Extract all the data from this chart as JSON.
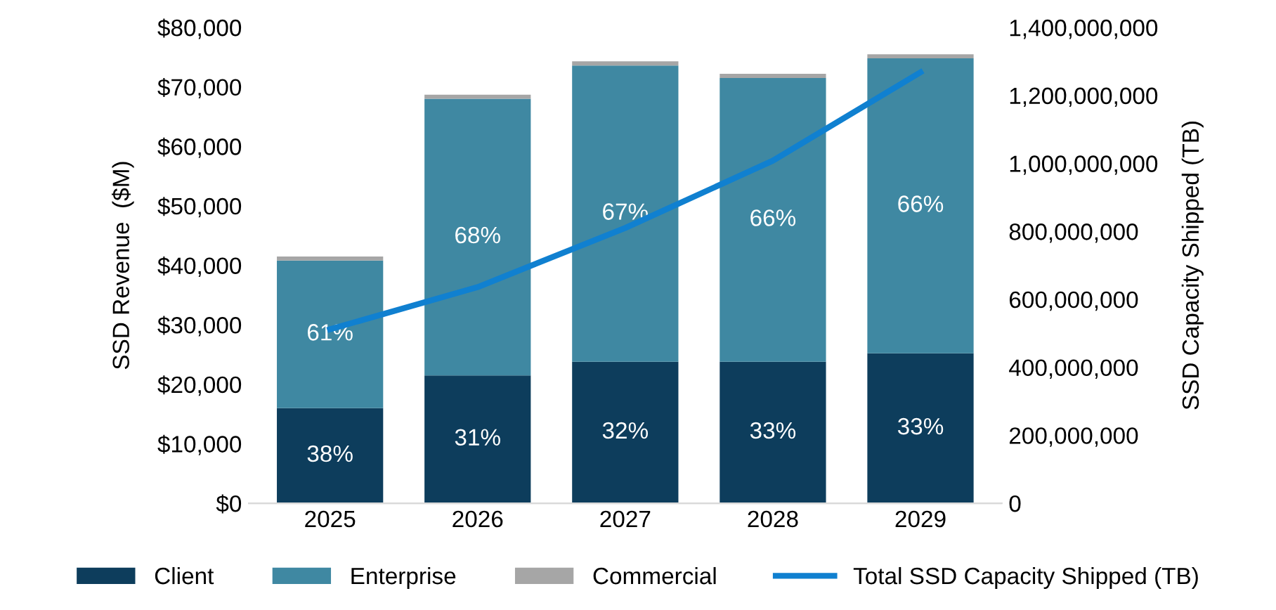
{
  "chart_data": {
    "type": "bar",
    "stacked": true,
    "categories": [
      "2025",
      "2026",
      "2027",
      "2028",
      "2029"
    ],
    "ylabel": "SSD Revenue  ($M)",
    "y2label": "SSD Capacity Shipped (TB)",
    "ylim": [
      0,
      80000
    ],
    "yticks": [
      {
        "value": 0,
        "label": "$0"
      },
      {
        "value": 10000,
        "label": "$10,000"
      },
      {
        "value": 20000,
        "label": "$20,000"
      },
      {
        "value": 30000,
        "label": "$30,000"
      },
      {
        "value": 40000,
        "label": "$40,000"
      },
      {
        "value": 50000,
        "label": "$50,000"
      },
      {
        "value": 60000,
        "label": "$60,000"
      },
      {
        "value": 70000,
        "label": "$70,000"
      },
      {
        "value": 80000,
        "label": "$80,000"
      }
    ],
    "y2lim": [
      0,
      1400000000
    ],
    "y2ticks": [
      0,
      {
        "value": 200000000,
        "label": "200,000,000"
      },
      {
        "value": 400000000,
        "label": "400,000,000"
      },
      {
        "value": 600000000,
        "label": "600,000,000"
      },
      {
        "value": 800000000,
        "label": "800,000,000"
      },
      {
        "value": 1000000000,
        "label": "1,000,000,000"
      },
      {
        "value": 1200000000,
        "label": "1,200,000,000"
      },
      {
        "value": 1400000000,
        "label": "1,400,000,000"
      }
    ],
    "series": [
      {
        "name": "Client",
        "color": "#0d3d5c",
        "values": [
          16000,
          21500,
          23800,
          23800,
          25200
        ]
      },
      {
        "name": "Enterprise",
        "color": "#3f88a2",
        "values": [
          24800,
          46500,
          49800,
          47700,
          49600
        ]
      },
      {
        "name": "Commercial",
        "color": "#a6a6a6",
        "values": [
          700,
          700,
          700,
          700,
          700
        ]
      },
      {
        "name": "Total SSD Capacity Shipped (TB)",
        "type": "line",
        "axis": "y2",
        "color": "#1080d0",
        "values": [
          512000000,
          636000000,
          810000000,
          1008000000,
          1268000000
        ]
      }
    ],
    "annotations": [
      "38%",
      "31%",
      "32%",
      "33%",
      "33%",
      "61%",
      "68%",
      "67%",
      "66%",
      "66%"
    ],
    "legend": "bottom",
    "grid": false
  }
}
